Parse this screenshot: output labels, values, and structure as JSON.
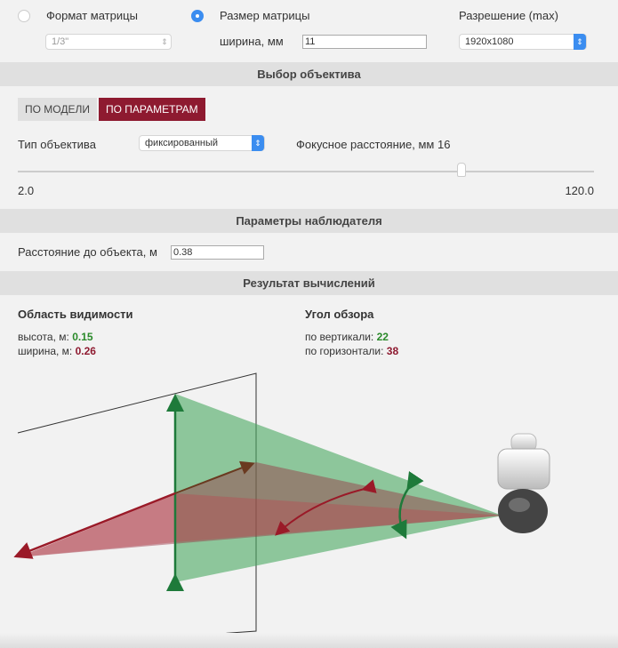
{
  "matrix": {
    "format_label": "Формат матрицы",
    "format_value": "1/3\"",
    "size_label": "Размер матрицы",
    "width_label": "ширина, мм",
    "width_value": "11",
    "resolution_label": "Разрешение (max)",
    "resolution_value": "1920x1080",
    "selected": "size"
  },
  "lens": {
    "title": "Выбор объектива",
    "tab_model": "ПО МОДЕЛИ",
    "tab_params": "ПО ПАРАМЕТРАМ",
    "type_label": "Тип объектива",
    "type_value": "фиксированный",
    "focal_label": "Фокусное расстояние, мм 16",
    "focal_value": 16,
    "slider_min": "2.0",
    "slider_max": "120.0"
  },
  "observer": {
    "title": "Параметры наблюдателя",
    "distance_label": "Расстояние до объекта, м",
    "distance_value": "0.38"
  },
  "result": {
    "title": "Результат вычислений",
    "area_title": "Область видимости",
    "height_label": "высота, м:",
    "height_value": "0.15",
    "width_label": "ширина, м:",
    "width_value": "0.26",
    "angle_title": "Угол обзора",
    "vertical_label": "по вертикали:",
    "vertical_value": "22",
    "horizontal_label": "по горизонтали:",
    "horizontal_value": "38"
  },
  "colors": {
    "accent": "#8e1a30",
    "green": "#2a8a2a",
    "blue": "#3b8df0"
  }
}
